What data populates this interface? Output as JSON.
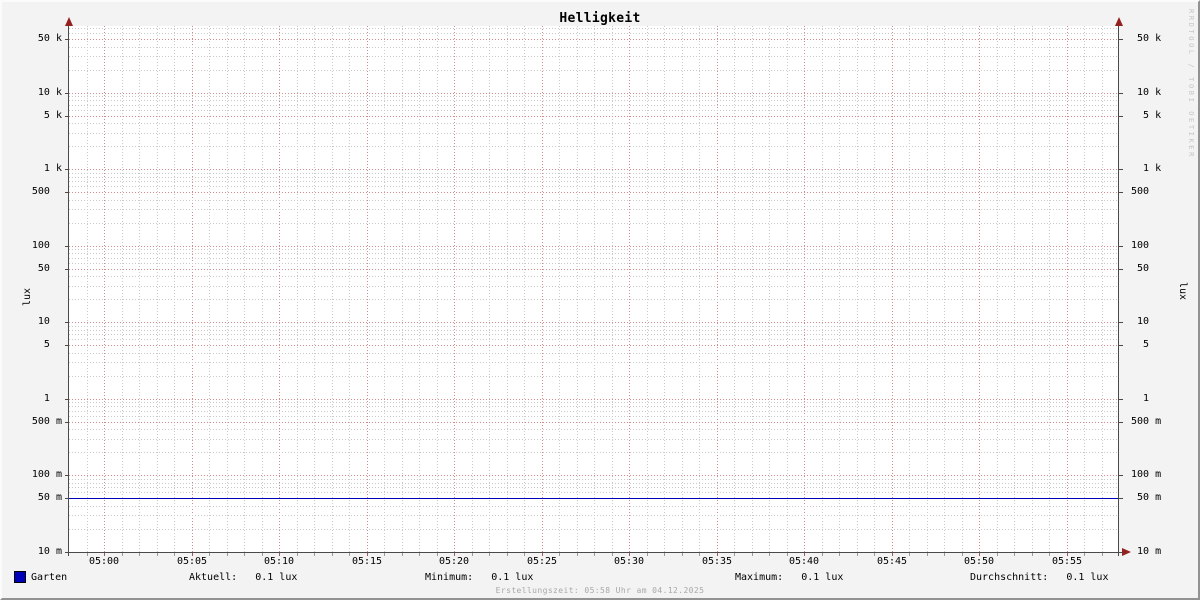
{
  "title": "Helligkeit",
  "watermark": "RRDTOOL / TOBI OETIKER",
  "footer": "Erstellungszeit: 05:58 Uhr am 04.12.2025",
  "legend": {
    "series_label": "Garten",
    "swatch_color": "#0000bb"
  },
  "stats": {
    "aktuell": "Aktuell:   0.1 lux",
    "minimum": "Minimum:   0.1 lux",
    "maximum": "Maximum:   0.1 lux",
    "durchschnitt": "Durchschnitt:   0.1 lux"
  },
  "colors": {
    "background": "#f3f3f3",
    "canvas": "#ffffff",
    "axis": "#4a4a4a",
    "arrow": "#942020",
    "major_grid": "#d48a8a",
    "minor_grid": "#c9c9c9",
    "line": "#0000bb"
  },
  "chart_data": {
    "type": "line",
    "title": "Helligkeit",
    "ylabel": "lux",
    "y_scale": "log",
    "ylim": [
      0.01,
      72000
    ],
    "x_range": [
      "04:58",
      "05:58"
    ],
    "grid": {
      "major_color": "#d48a8a",
      "minor_color": "#c9c9c9",
      "grid_on": true
    },
    "legend_position": "bottom",
    "x_tick_labels": [
      "05:00",
      "05:05",
      "05:10",
      "05:15",
      "05:20",
      "05:25",
      "05:30",
      "05:35",
      "05:40",
      "05:45",
      "05:50",
      "05:55"
    ],
    "x_tick_minutes": [
      2,
      7,
      12,
      17,
      22,
      27,
      32,
      37,
      42,
      47,
      52,
      57
    ],
    "y_ticks": [
      {
        "value": 50000,
        "label": "50 k"
      },
      {
        "value": 10000,
        "label": "10 k"
      },
      {
        "value": 5000,
        "label": "5 k"
      },
      {
        "value": 1000,
        "label": "1 k"
      },
      {
        "value": 500,
        "label": "500"
      },
      {
        "value": 100,
        "label": "100"
      },
      {
        "value": 50,
        "label": "50"
      },
      {
        "value": 10,
        "label": "10"
      },
      {
        "value": 5,
        "label": "5"
      },
      {
        "value": 1,
        "label": "1"
      },
      {
        "value": 0.5,
        "label": "500 m"
      },
      {
        "value": 0.1,
        "label": "100 m"
      },
      {
        "value": 0.05,
        "label": "50 m"
      },
      {
        "value": 0.01,
        "label": "10 m"
      }
    ],
    "series": [
      {
        "name": "Garten",
        "color": "#0000bb",
        "shape": "constant-horizontal-line",
        "x": [
          "04:58",
          "05:58"
        ],
        "y": [
          0.05,
          0.05
        ]
      }
    ],
    "stats": {
      "aktuell_lux": 0.1,
      "minimum_lux": 0.1,
      "maximum_lux": 0.1,
      "durchschnitt_lux": 0.1
    }
  }
}
